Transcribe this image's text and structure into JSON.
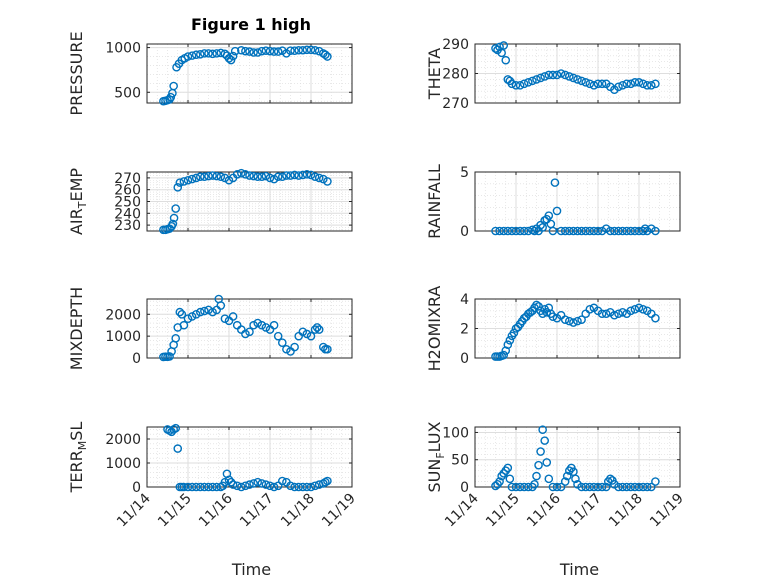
{
  "figure": {
    "title": "Figure 1 high",
    "xlabel": "Time"
  },
  "chart_data": [
    {
      "type": "scatter",
      "ylabel": "PRESSURE",
      "ylim": [
        380,
        1040
      ],
      "yticks": [
        500,
        1000
      ],
      "ytick_labels": [
        "500",
        "1000"
      ],
      "xlim": [
        14,
        19
      ],
      "xticks": [
        14,
        15,
        16,
        17,
        18,
        19
      ],
      "xtick_labels": [
        "11/14",
        "11/15",
        "11/16",
        "11/17",
        "11/18",
        "11/19"
      ],
      "grid": true,
      "minor_grid": true,
      "marker_color": "#0072BD",
      "x": [
        14.4,
        14.45,
        14.5,
        14.55,
        14.58,
        14.62,
        14.65,
        14.72,
        14.78,
        14.85,
        14.92,
        15.0,
        15.1,
        15.2,
        15.3,
        15.4,
        15.5,
        15.6,
        15.7,
        15.8,
        15.9,
        15.95,
        16.0,
        16.05,
        16.1,
        16.15,
        16.3,
        16.4,
        16.5,
        16.6,
        16.7,
        16.8,
        16.9,
        17.0,
        17.1,
        17.2,
        17.3,
        17.4,
        17.5,
        17.6,
        17.7,
        17.8,
        17.9,
        18.0,
        18.1,
        18.2,
        18.3,
        18.35,
        18.4
      ],
      "y": [
        400,
        405,
        412,
        420,
        445,
        490,
        570,
        780,
        820,
        860,
        880,
        900,
        910,
        920,
        925,
        935,
        935,
        930,
        935,
        940,
        930,
        910,
        880,
        860,
        905,
        960,
        970,
        960,
        955,
        945,
        945,
        960,
        965,
        960,
        955,
        955,
        965,
        935,
        965,
        965,
        970,
        970,
        975,
        975,
        970,
        960,
        935,
        920,
        900
      ]
    },
    {
      "type": "scatter",
      "ylabel": "THETA",
      "ylim": [
        270,
        290
      ],
      "yticks": [
        270,
        280,
        290
      ],
      "ytick_labels": [
        "270",
        "280",
        "290"
      ],
      "xlim": [
        14,
        19
      ],
      "xticks": [
        14,
        15,
        16,
        17,
        18,
        19
      ],
      "xtick_labels": [
        "11/14",
        "11/15",
        "11/16",
        "11/17",
        "11/18",
        "11/19"
      ],
      "grid": true,
      "minor_grid": true,
      "marker_color": "#0072BD",
      "x": [
        14.5,
        14.55,
        14.6,
        14.65,
        14.7,
        14.75,
        14.8,
        14.85,
        14.9,
        15.0,
        15.1,
        15.2,
        15.3,
        15.4,
        15.5,
        15.6,
        15.7,
        15.8,
        15.9,
        16.0,
        16.1,
        16.2,
        16.3,
        16.4,
        16.5,
        16.6,
        16.7,
        16.8,
        16.9,
        17.0,
        17.1,
        17.2,
        17.3,
        17.4,
        17.5,
        17.6,
        17.7,
        17.8,
        17.9,
        18.0,
        18.1,
        18.2,
        18.3,
        18.4
      ],
      "y": [
        288.5,
        288,
        289,
        287,
        289.5,
        284.5,
        278,
        277.5,
        276.5,
        276,
        276,
        276.5,
        277,
        277.5,
        278,
        278.5,
        279,
        279.5,
        279.5,
        279.5,
        280,
        279.5,
        279,
        278.5,
        278,
        277.5,
        277,
        276.5,
        276,
        276.5,
        276.5,
        276.5,
        275.5,
        274.5,
        275.5,
        276,
        276.5,
        276.5,
        277,
        277,
        276.5,
        276,
        276,
        276.5
      ]
    },
    {
      "type": "scatter",
      "ylabel": "AIR",
      "ylabel_sub": "T",
      "ylabel_end": "EMP",
      "ylim": [
        225,
        275
      ],
      "yticks": [
        230,
        240,
        250,
        260,
        270
      ],
      "ytick_labels": [
        "230",
        "240",
        "250",
        "260",
        "270"
      ],
      "xlim": [
        14,
        19
      ],
      "xticks": [
        14,
        15,
        16,
        17,
        18,
        19
      ],
      "xtick_labels": [
        "11/14",
        "11/15",
        "11/16",
        "11/17",
        "11/18",
        "11/19"
      ],
      "grid": true,
      "minor_grid": true,
      "marker_color": "#0072BD",
      "x": [
        14.4,
        14.45,
        14.5,
        14.55,
        14.6,
        14.63,
        14.66,
        14.7,
        14.75,
        14.8,
        14.9,
        15.0,
        15.1,
        15.2,
        15.3,
        15.4,
        15.5,
        15.6,
        15.7,
        15.8,
        15.9,
        16.0,
        16.1,
        16.2,
        16.3,
        16.4,
        16.5,
        16.6,
        16.7,
        16.8,
        16.9,
        17.0,
        17.1,
        17.2,
        17.3,
        17.4,
        17.5,
        17.6,
        17.7,
        17.8,
        17.9,
        18.0,
        18.1,
        18.2,
        18.3,
        18.4
      ],
      "y": [
        226,
        226,
        226.5,
        227,
        229,
        231,
        236,
        244,
        262,
        266,
        267,
        268,
        269,
        270,
        271,
        271,
        271.5,
        272,
        271.5,
        271,
        270,
        268,
        270,
        273,
        274,
        273,
        272,
        271.5,
        271,
        271,
        271.5,
        270,
        269,
        271,
        271,
        272,
        272,
        272.5,
        272,
        272.5,
        273,
        272.5,
        271,
        270,
        269,
        267
      ]
    },
    {
      "type": "scatter",
      "ylabel": "RAINFALL",
      "ylim": [
        0,
        5
      ],
      "yticks": [
        0,
        5
      ],
      "ytick_labels": [
        "0",
        "5"
      ],
      "xlim": [
        14,
        19
      ],
      "xticks": [
        14,
        15,
        16,
        17,
        18,
        19
      ],
      "xtick_labels": [
        "11/14",
        "11/15",
        "11/16",
        "11/17",
        "11/18",
        "11/19"
      ],
      "grid": true,
      "minor_grid": true,
      "marker_color": "#0072BD",
      "x": [
        14.5,
        14.6,
        14.7,
        14.8,
        14.9,
        15.0,
        15.1,
        15.2,
        15.3,
        15.4,
        15.45,
        15.5,
        15.55,
        15.6,
        15.65,
        15.7,
        15.75,
        15.8,
        15.85,
        15.9,
        15.95,
        16.0,
        16.1,
        16.2,
        16.3,
        16.4,
        16.5,
        16.6,
        16.7,
        16.8,
        16.9,
        17.0,
        17.1,
        17.2,
        17.3,
        17.4,
        17.5,
        17.6,
        17.7,
        17.8,
        17.9,
        18.0,
        18.1,
        18.15,
        18.2,
        18.3,
        18.4
      ],
      "y": [
        0,
        0,
        0,
        0,
        0,
        0,
        0,
        0,
        0,
        0.1,
        0,
        0.2,
        0,
        0.5,
        0.3,
        0.9,
        1.0,
        1.3,
        0.6,
        0,
        4.1,
        1.7,
        0,
        0,
        0,
        0,
        0,
        0,
        0,
        0,
        0,
        0,
        0,
        0.2,
        0,
        0,
        0,
        0,
        0,
        0,
        0,
        0,
        0,
        0.2,
        0,
        0.2,
        0
      ]
    },
    {
      "type": "scatter",
      "ylabel": "MIXDEPTH",
      "ylim": [
        0,
        2700
      ],
      "yticks": [
        0,
        1000,
        2000
      ],
      "ytick_labels": [
        "0",
        "1000",
        "2000"
      ],
      "xlim": [
        14,
        19
      ],
      "xticks": [
        14,
        15,
        16,
        17,
        18,
        19
      ],
      "xtick_labels": [
        "11/14",
        "11/15",
        "11/16",
        "11/17",
        "11/18",
        "11/19"
      ],
      "grid": true,
      "minor_grid": true,
      "marker_color": "#0072BD",
      "x": [
        14.4,
        14.45,
        14.5,
        14.55,
        14.6,
        14.65,
        14.7,
        14.75,
        14.8,
        14.85,
        14.9,
        15.0,
        15.1,
        15.2,
        15.3,
        15.4,
        15.5,
        15.6,
        15.7,
        15.75,
        15.8,
        15.9,
        16.0,
        16.1,
        16.2,
        16.3,
        16.4,
        16.5,
        16.6,
        16.7,
        16.8,
        16.9,
        17.0,
        17.1,
        17.2,
        17.3,
        17.4,
        17.5,
        17.6,
        17.7,
        17.8,
        17.9,
        18.0,
        18.1,
        18.15,
        18.2,
        18.3,
        18.35,
        18.4
      ],
      "y": [
        50,
        60,
        55,
        70,
        300,
        600,
        900,
        1400,
        2100,
        2000,
        1500,
        1800,
        1900,
        2000,
        2100,
        2150,
        2200,
        2100,
        2200,
        2700,
        2400,
        1800,
        1700,
        1900,
        1500,
        1300,
        1100,
        1200,
        1500,
        1600,
        1500,
        1400,
        1300,
        1500,
        1000,
        700,
        400,
        300,
        500,
        1000,
        1200,
        1100,
        1000,
        1300,
        1400,
        1300,
        500,
        400,
        400
      ]
    },
    {
      "type": "scatter",
      "ylabel": "H2OMIXRA",
      "ylim": [
        0,
        4
      ],
      "yticks": [
        0,
        2,
        4
      ],
      "ytick_labels": [
        "0",
        "2",
        "4"
      ],
      "xlim": [
        14,
        19
      ],
      "xticks": [
        14,
        15,
        16,
        17,
        18,
        19
      ],
      "xtick_labels": [
        "11/14",
        "11/15",
        "11/16",
        "11/17",
        "11/18",
        "11/19"
      ],
      "grid": true,
      "minor_grid": true,
      "marker_color": "#0072BD",
      "x": [
        14.5,
        14.55,
        14.6,
        14.65,
        14.7,
        14.75,
        14.8,
        14.85,
        14.9,
        14.95,
        15.0,
        15.05,
        15.1,
        15.15,
        15.2,
        15.25,
        15.3,
        15.35,
        15.4,
        15.45,
        15.5,
        15.55,
        15.6,
        15.65,
        15.7,
        15.75,
        15.8,
        15.85,
        15.9,
        16.0,
        16.1,
        16.2,
        16.3,
        16.4,
        16.5,
        16.6,
        16.7,
        16.8,
        16.9,
        17.0,
        17.1,
        17.2,
        17.3,
        17.4,
        17.5,
        17.6,
        17.7,
        17.8,
        17.9,
        18.0,
        18.1,
        18.2,
        18.3,
        18.4
      ],
      "y": [
        0.1,
        0.1,
        0.1,
        0.15,
        0.2,
        0.5,
        0.9,
        1.2,
        1.5,
        1.7,
        2.0,
        2.1,
        2.3,
        2.5,
        2.7,
        2.8,
        3.0,
        3.1,
        3.2,
        3.4,
        3.6,
        3.5,
        3.2,
        3.0,
        3.3,
        3.1,
        3.4,
        3.0,
        2.8,
        2.7,
        2.9,
        2.6,
        2.5,
        2.4,
        2.5,
        2.6,
        3.0,
        3.3,
        3.4,
        3.2,
        3.0,
        3.0,
        3.1,
        2.9,
        3.0,
        3.1,
        3.0,
        3.2,
        3.3,
        3.4,
        3.3,
        3.2,
        3.0,
        2.7
      ]
    },
    {
      "type": "scatter",
      "ylabel": "TERR",
      "ylabel_sub": "M",
      "ylabel_end": "SL",
      "ylim": [
        0,
        2500
      ],
      "yticks": [
        0,
        1000,
        2000
      ],
      "ytick_labels": [
        "0",
        "1000",
        "2000"
      ],
      "xlim": [
        14,
        19
      ],
      "xticks": [
        14,
        15,
        16,
        17,
        18,
        19
      ],
      "xtick_labels": [
        "11/14",
        "11/15",
        "11/16",
        "11/17",
        "11/18",
        "11/19"
      ],
      "grid": true,
      "minor_grid": true,
      "marker_color": "#0072BD",
      "x": [
        14.5,
        14.55,
        14.6,
        14.65,
        14.7,
        14.75,
        14.8,
        14.85,
        14.9,
        15.0,
        15.1,
        15.2,
        15.3,
        15.4,
        15.5,
        15.6,
        15.7,
        15.8,
        15.85,
        15.9,
        15.95,
        16.0,
        16.05,
        16.1,
        16.2,
        16.3,
        16.4,
        16.5,
        16.6,
        16.7,
        16.8,
        16.9,
        17.0,
        17.1,
        17.2,
        17.3,
        17.4,
        17.5,
        17.6,
        17.7,
        17.8,
        17.9,
        18.0,
        18.1,
        18.2,
        18.3,
        18.35,
        18.4
      ],
      "y": [
        2400,
        2350,
        2300,
        2400,
        2450,
        1600,
        0,
        0,
        0,
        0,
        0,
        0,
        0,
        0,
        0,
        0,
        0,
        0,
        50,
        200,
        550,
        300,
        200,
        100,
        50,
        0,
        50,
        100,
        150,
        200,
        150,
        100,
        50,
        0,
        50,
        250,
        200,
        50,
        0,
        0,
        0,
        0,
        0,
        50,
        100,
        150,
        200,
        250
      ]
    },
    {
      "type": "scatter",
      "ylabel": "SUN",
      "ylabel_sub": "F",
      "ylabel_end": "LUX",
      "ylim": [
        0,
        110
      ],
      "yticks": [
        0,
        50,
        100
      ],
      "ytick_labels": [
        "0",
        "50",
        "100"
      ],
      "xlim": [
        14,
        19
      ],
      "xticks": [
        14,
        15,
        16,
        17,
        18,
        19
      ],
      "xtick_labels": [
        "11/14",
        "11/15",
        "11/16",
        "11/17",
        "11/18",
        "11/19"
      ],
      "grid": true,
      "minor_grid": true,
      "marker_color": "#0072BD",
      "x": [
        14.5,
        14.55,
        14.6,
        14.65,
        14.7,
        14.75,
        14.8,
        14.85,
        14.9,
        15.0,
        15.1,
        15.2,
        15.3,
        15.4,
        15.45,
        15.5,
        15.55,
        15.6,
        15.65,
        15.7,
        15.75,
        15.8,
        15.9,
        16.0,
        16.1,
        16.2,
        16.25,
        16.3,
        16.35,
        16.4,
        16.45,
        16.5,
        16.6,
        16.7,
        16.8,
        16.9,
        17.0,
        17.1,
        17.2,
        17.25,
        17.3,
        17.35,
        17.4,
        17.5,
        17.6,
        17.7,
        17.8,
        17.9,
        18.0,
        18.1,
        18.2,
        18.3,
        18.4
      ],
      "y": [
        2,
        5,
        10,
        20,
        25,
        30,
        35,
        15,
        0,
        0,
        0,
        0,
        0,
        0,
        5,
        20,
        40,
        65,
        105,
        85,
        45,
        15,
        0,
        0,
        0,
        10,
        20,
        30,
        35,
        28,
        15,
        5,
        0,
        0,
        0,
        0,
        0,
        0,
        0,
        10,
        15,
        12,
        5,
        0,
        0,
        0,
        0,
        0,
        0,
        0,
        0,
        0,
        10
      ]
    }
  ]
}
